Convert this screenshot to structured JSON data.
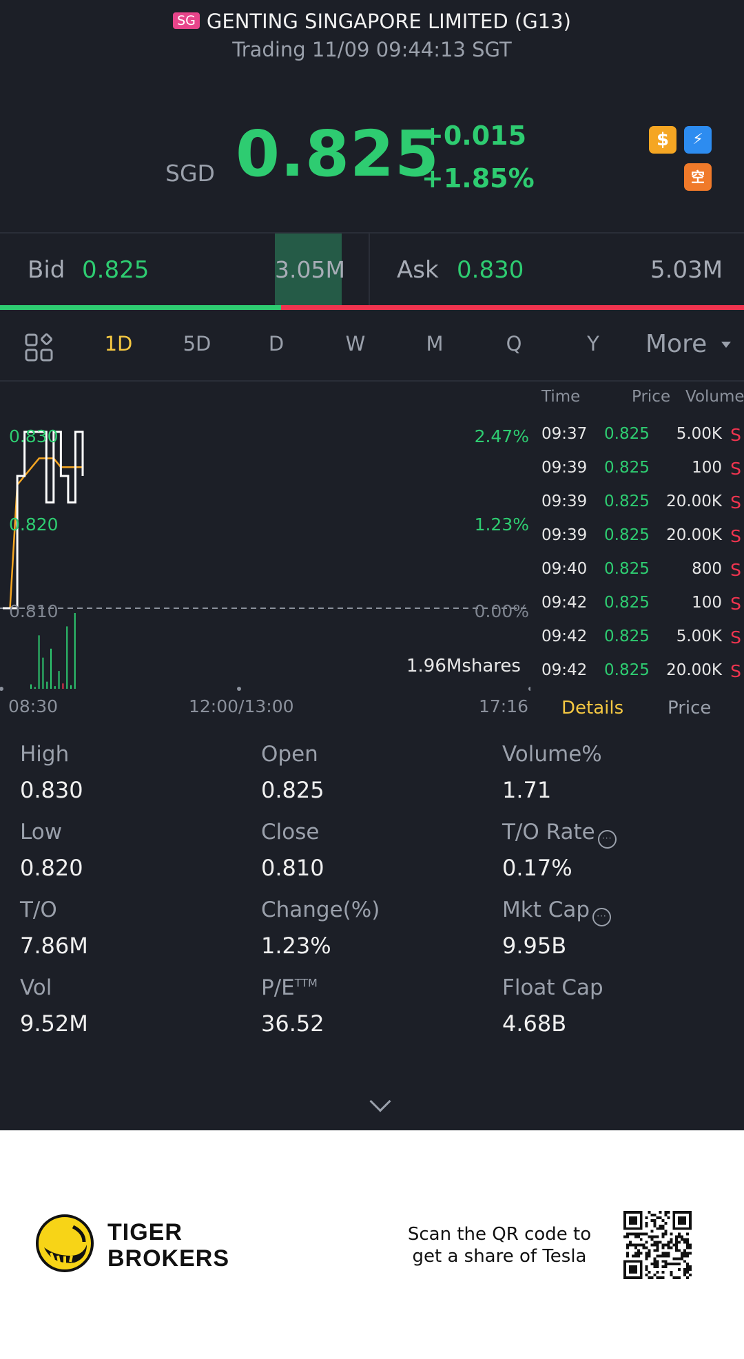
{
  "header": {
    "market_badge": "SG",
    "title": "GENTING SINGAPORE LIMITED (G13)",
    "status": "Trading 11/09 09:44:13 SGT"
  },
  "quote": {
    "currency": "SGD",
    "price": "0.825",
    "change": "+0.015",
    "change_pct": "+1.85%",
    "up_color": "#2ecc71",
    "down_color": "#f0344f",
    "icons": [
      "dollar-icon",
      "lightning-level1-icon",
      "short-sell-icon"
    ]
  },
  "orderbook": {
    "bid_label": "Bid",
    "bid_price": "0.825",
    "bid_size": "3.05M",
    "ask_label": "Ask",
    "ask_price": "0.830",
    "ask_size": "5.03M",
    "bid_ratio": 0.378
  },
  "tabs": {
    "items": [
      "1D",
      "5D",
      "D",
      "W",
      "M",
      "Q",
      "Y"
    ],
    "active": "1D",
    "more_label": "More"
  },
  "chart": {
    "y_labels": [
      "0.830",
      "0.820",
      "0.810"
    ],
    "pct_labels": [
      "2.47%",
      "1.23%",
      "0.00%"
    ],
    "x_labels": [
      "08:30",
      "12:00/13:00",
      "17:16"
    ],
    "volume_label": "1.96Mshares"
  },
  "chart_data": {
    "type": "line",
    "x": [
      "08:30",
      "09:00",
      "09:15",
      "09:20",
      "09:25",
      "09:30",
      "09:35",
      "09:37",
      "09:39",
      "09:40",
      "09:42",
      "09:44"
    ],
    "series": [
      {
        "values": [
          0.81,
          0.81,
          0.825,
          0.83,
          0.83,
          0.83,
          0.822,
          0.83,
          0.825,
          0.822,
          0.83,
          0.825
        ]
      },
      {
        "values": [
          0.81,
          0.81,
          0.824,
          0.825,
          0.826,
          0.827,
          0.827,
          0.827,
          0.826,
          0.826,
          0.826,
          0.826
        ]
      }
    ],
    "ylim": [
      0.81,
      0.83
    ],
    "reference": 0.81,
    "volume": [
      5,
      2,
      60,
      35,
      8,
      45,
      3,
      20,
      6,
      70,
      4,
      85
    ],
    "volume_up": [
      true,
      true,
      true,
      true,
      true,
      true,
      true,
      true,
      false,
      true,
      true,
      true
    ]
  },
  "trades": {
    "headers": [
      "Time",
      "Price",
      "Volume"
    ],
    "rows": [
      {
        "time": "09:37",
        "price": "0.825",
        "volume": "5.00K",
        "side": "S"
      },
      {
        "time": "09:39",
        "price": "0.825",
        "volume": "100",
        "side": "S"
      },
      {
        "time": "09:39",
        "price": "0.825",
        "volume": "20.00K",
        "side": "S"
      },
      {
        "time": "09:39",
        "price": "0.825",
        "volume": "20.00K",
        "side": "S"
      },
      {
        "time": "09:40",
        "price": "0.825",
        "volume": "800",
        "side": "S"
      },
      {
        "time": "09:42",
        "price": "0.825",
        "volume": "100",
        "side": "S"
      },
      {
        "time": "09:42",
        "price": "0.825",
        "volume": "5.00K",
        "side": "S"
      },
      {
        "time": "09:42",
        "price": "0.825",
        "volume": "20.00K",
        "side": "S"
      }
    ],
    "tab_details": "Details",
    "tab_price": "Price"
  },
  "stats": {
    "high_label": "High",
    "high": "0.830",
    "open_label": "Open",
    "open": "0.825",
    "volpct_label": "Volume%",
    "volpct": "1.71",
    "low_label": "Low",
    "low": "0.820",
    "close_label": "Close",
    "close": "0.810",
    "torate_label": "T/O Rate",
    "torate": "0.17%",
    "to_label": "T/O",
    "to": "7.86M",
    "change_label": "Change(%)",
    "change": "1.23%",
    "mktcap_label": "Mkt Cap",
    "mktcap": "9.95B",
    "vol_label": "Vol",
    "vol": "9.52M",
    "pe_label": "P/E",
    "pe_sup": "TTM",
    "pe": "36.52",
    "floatcap_label": "Float Cap",
    "floatcap": "4.68B"
  },
  "footer": {
    "brand_line1": "TIGER",
    "brand_line2": "BROKERS",
    "scan_line1": "Scan the QR code to",
    "scan_line2": "get a share of Tesla"
  }
}
